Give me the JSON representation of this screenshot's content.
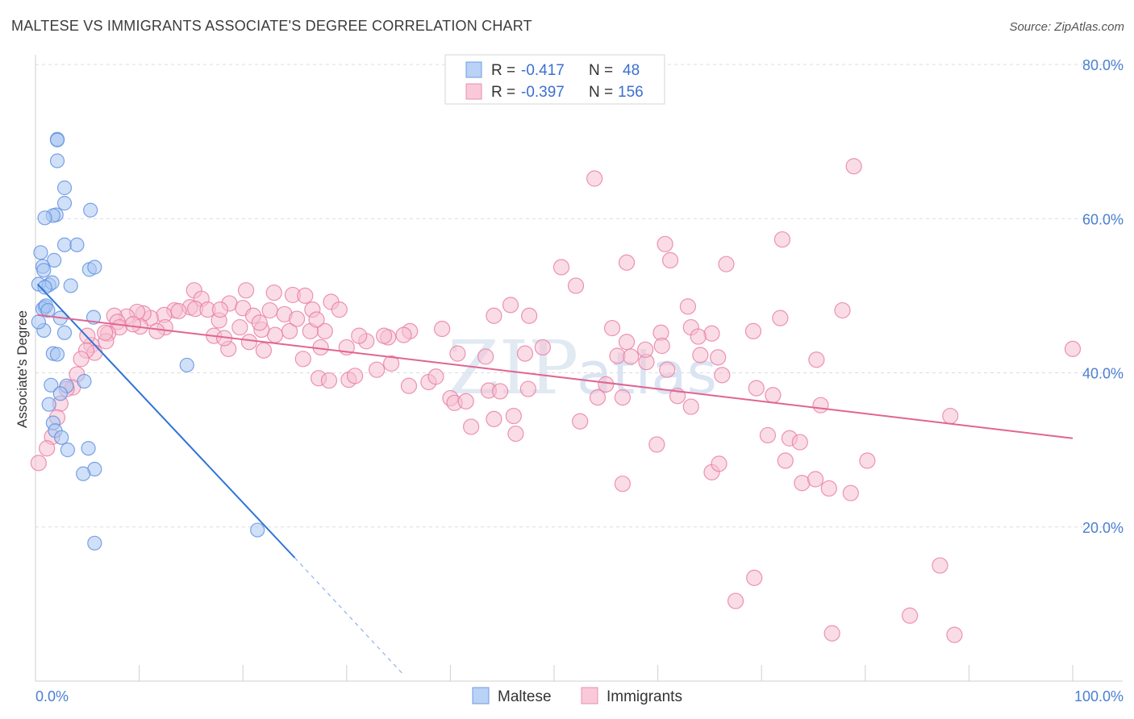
{
  "chart_data": {
    "type": "scatter",
    "title": "MALTESE VS IMMIGRANTS ASSOCIATE'S DEGREE CORRELATION CHART",
    "source": "Source: ZipAtlas.com",
    "ylabel": "Associate's Degree",
    "xlim": [
      0,
      100
    ],
    "ylim": [
      0,
      80
    ],
    "x_tick_labels": [
      "0.0%",
      "100.0%"
    ],
    "y_ticks": [
      {
        "value": 20,
        "label": "20.0%"
      },
      {
        "value": 40,
        "label": "40.0%"
      },
      {
        "value": 60,
        "label": "60.0%"
      },
      {
        "value": 80,
        "label": "80.0%"
      }
    ],
    "grid": true,
    "watermark": {
      "part1": "ZIP",
      "part2": "atlas"
    },
    "legend": {
      "placement": "top-center",
      "rows": [
        {
          "r_label": "R =",
          "r_value": "-0.417",
          "n_label": "N =",
          "n_value": "48"
        },
        {
          "r_label": "R =",
          "r_value": "-0.397",
          "n_label": "N =",
          "n_value": "156"
        }
      ]
    },
    "series": [
      {
        "name": "Maltese",
        "color": "#5b8fe0",
        "fill": "#a9c6f2",
        "trend": {
          "x0": 0.2,
          "y0": 51.5,
          "x1": 25.0,
          "y1": 16.0,
          "dash_to_x": 35.5,
          "dash_to_y": 0.8,
          "color": "#2f74d6"
        },
        "points": [
          [
            2.1,
            70.3
          ],
          [
            2.1,
            70.2
          ],
          [
            2.1,
            67.5
          ],
          [
            2.8,
            64.0
          ],
          [
            2.8,
            62.0
          ],
          [
            2.0,
            60.5
          ],
          [
            1.7,
            60.4
          ],
          [
            5.3,
            61.1
          ],
          [
            0.9,
            60.1
          ],
          [
            2.8,
            56.6
          ],
          [
            4.0,
            56.6
          ],
          [
            0.5,
            55.6
          ],
          [
            1.8,
            54.6
          ],
          [
            5.2,
            53.4
          ],
          [
            5.7,
            53.7
          ],
          [
            0.7,
            53.8
          ],
          [
            0.8,
            53.3
          ],
          [
            0.3,
            51.5
          ],
          [
            1.3,
            51.4
          ],
          [
            1.6,
            51.7
          ],
          [
            0.9,
            51.1
          ],
          [
            3.4,
            51.3
          ],
          [
            0.9,
            48.5
          ],
          [
            0.7,
            48.3
          ],
          [
            1.0,
            48.7
          ],
          [
            1.2,
            48.1
          ],
          [
            2.4,
            47.1
          ],
          [
            5.6,
            47.2
          ],
          [
            0.8,
            45.5
          ],
          [
            2.8,
            45.2
          ],
          [
            1.7,
            42.5
          ],
          [
            2.1,
            42.4
          ],
          [
            14.6,
            41.0
          ],
          [
            4.7,
            38.9
          ],
          [
            1.5,
            38.4
          ],
          [
            3.0,
            38.3
          ],
          [
            2.4,
            37.3
          ],
          [
            1.3,
            35.9
          ],
          [
            1.7,
            33.5
          ],
          [
            1.9,
            32.5
          ],
          [
            2.5,
            31.6
          ],
          [
            5.1,
            30.2
          ],
          [
            3.1,
            30.0
          ],
          [
            5.7,
            27.5
          ],
          [
            4.6,
            26.9
          ],
          [
            21.4,
            19.6
          ],
          [
            5.7,
            17.9
          ],
          [
            0.3,
            46.6
          ]
        ]
      },
      {
        "name": "Immigrants",
        "color": "#e87aa0",
        "fill": "#f6bfd2",
        "trend": {
          "x0": 0.2,
          "y0": 47.5,
          "x1": 100.0,
          "y1": 31.5,
          "color": "#e06592"
        },
        "points": [
          [
            53.9,
            65.2
          ],
          [
            78.9,
            66.8
          ],
          [
            72.0,
            57.3
          ],
          [
            60.7,
            56.7
          ],
          [
            66.6,
            54.1
          ],
          [
            57.0,
            54.3
          ],
          [
            61.2,
            54.6
          ],
          [
            71.8,
            47.1
          ],
          [
            62.9,
            48.6
          ],
          [
            52.1,
            51.3
          ],
          [
            50.7,
            53.7
          ],
          [
            45.8,
            48.8
          ],
          [
            44.2,
            47.4
          ],
          [
            47.6,
            47.4
          ],
          [
            63.2,
            45.9
          ],
          [
            55.6,
            45.8
          ],
          [
            65.2,
            45.1
          ],
          [
            60.3,
            45.2
          ],
          [
            56.1,
            42.2
          ],
          [
            57.4,
            42.1
          ],
          [
            64.1,
            42.3
          ],
          [
            57.0,
            44.0
          ],
          [
            60.4,
            43.5
          ],
          [
            48.9,
            43.3
          ],
          [
            47.2,
            42.5
          ],
          [
            43.4,
            42.1
          ],
          [
            40.7,
            42.5
          ],
          [
            39.2,
            45.7
          ],
          [
            36.1,
            45.4
          ],
          [
            35.5,
            44.9
          ],
          [
            34.0,
            44.6
          ],
          [
            33.6,
            44.8
          ],
          [
            31.9,
            44.1
          ],
          [
            31.2,
            44.8
          ],
          [
            30.0,
            43.3
          ],
          [
            27.5,
            43.3
          ],
          [
            27.9,
            45.4
          ],
          [
            26.5,
            45.4
          ],
          [
            24.5,
            45.4
          ],
          [
            23.1,
            44.9
          ],
          [
            21.8,
            45.6
          ],
          [
            20.6,
            44.0
          ],
          [
            18.6,
            43.1
          ],
          [
            17.2,
            44.8
          ],
          [
            17.7,
            46.8
          ],
          [
            18.7,
            49.0
          ],
          [
            20.0,
            48.4
          ],
          [
            21.0,
            47.4
          ],
          [
            21.6,
            46.5
          ],
          [
            22.6,
            48.1
          ],
          [
            24.0,
            47.6
          ],
          [
            25.2,
            47.0
          ],
          [
            26.7,
            48.2
          ],
          [
            27.1,
            46.9
          ],
          [
            28.5,
            49.2
          ],
          [
            29.3,
            48.2
          ],
          [
            23.0,
            50.4
          ],
          [
            24.8,
            50.1
          ],
          [
            26.0,
            50.0
          ],
          [
            20.3,
            50.7
          ],
          [
            15.3,
            50.7
          ],
          [
            16.0,
            49.6
          ],
          [
            13.4,
            48.1
          ],
          [
            14.9,
            48.5
          ],
          [
            15.4,
            48.3
          ],
          [
            12.4,
            47.5
          ],
          [
            11.1,
            47.1
          ],
          [
            10.4,
            47.7
          ],
          [
            9.8,
            47.9
          ],
          [
            8.8,
            47.3
          ],
          [
            7.6,
            47.4
          ],
          [
            7.9,
            46.6
          ],
          [
            8.1,
            45.9
          ],
          [
            7.0,
            45.1
          ],
          [
            6.8,
            44.1
          ],
          [
            5.4,
            43.6
          ],
          [
            5.7,
            42.6
          ],
          [
            4.9,
            42.9
          ],
          [
            4.4,
            41.8
          ],
          [
            4.0,
            39.8
          ],
          [
            3.6,
            38.1
          ],
          [
            3.0,
            37.9
          ],
          [
            2.4,
            36.0
          ],
          [
            2.1,
            34.2
          ],
          [
            1.6,
            31.7
          ],
          [
            1.1,
            30.2
          ],
          [
            0.3,
            28.3
          ],
          [
            5.0,
            44.8
          ],
          [
            6.7,
            45.2
          ],
          [
            10.1,
            46.0
          ],
          [
            12.5,
            45.9
          ],
          [
            9.4,
            46.3
          ],
          [
            11.7,
            45.4
          ],
          [
            13.8,
            48.0
          ],
          [
            16.6,
            48.2
          ],
          [
            17.8,
            48.2
          ],
          [
            18.2,
            44.5
          ],
          [
            19.7,
            45.9
          ],
          [
            22.0,
            42.9
          ],
          [
            25.8,
            41.8
          ],
          [
            27.3,
            39.3
          ],
          [
            28.3,
            39.0
          ],
          [
            30.2,
            39.1
          ],
          [
            30.8,
            39.6
          ],
          [
            32.9,
            40.4
          ],
          [
            34.3,
            41.2
          ],
          [
            37.9,
            38.8
          ],
          [
            38.6,
            39.5
          ],
          [
            36.0,
            38.3
          ],
          [
            40.0,
            36.7
          ],
          [
            40.4,
            36.1
          ],
          [
            41.5,
            36.3
          ],
          [
            43.7,
            37.7
          ],
          [
            44.8,
            37.6
          ],
          [
            47.5,
            37.9
          ],
          [
            42.0,
            33.0
          ],
          [
            44.2,
            34.0
          ],
          [
            46.1,
            34.4
          ],
          [
            46.3,
            32.1
          ],
          [
            52.5,
            33.7
          ],
          [
            54.2,
            36.8
          ],
          [
            55.0,
            38.5
          ],
          [
            56.6,
            36.8
          ],
          [
            58.9,
            41.4
          ],
          [
            58.8,
            43.0
          ],
          [
            60.9,
            40.4
          ],
          [
            61.9,
            37.0
          ],
          [
            63.2,
            35.6
          ],
          [
            65.8,
            42.0
          ],
          [
            66.2,
            39.7
          ],
          [
            69.5,
            38.0
          ],
          [
            71.1,
            37.1
          ],
          [
            75.3,
            41.7
          ],
          [
            75.7,
            35.8
          ],
          [
            70.6,
            31.9
          ],
          [
            72.7,
            31.5
          ],
          [
            73.7,
            31.0
          ],
          [
            72.3,
            28.6
          ],
          [
            73.9,
            25.7
          ],
          [
            76.5,
            25.0
          ],
          [
            80.2,
            28.6
          ],
          [
            78.6,
            24.4
          ],
          [
            75.2,
            26.2
          ],
          [
            88.2,
            34.4
          ],
          [
            100.0,
            43.1
          ],
          [
            69.2,
            45.4
          ],
          [
            63.9,
            44.7
          ],
          [
            56.6,
            25.6
          ],
          [
            59.9,
            30.7
          ],
          [
            65.2,
            27.1
          ],
          [
            65.9,
            28.2
          ],
          [
            87.2,
            15.0
          ],
          [
            84.3,
            8.5
          ],
          [
            88.6,
            6.0
          ],
          [
            76.8,
            6.2
          ],
          [
            69.3,
            13.4
          ],
          [
            67.5,
            10.4
          ],
          [
            77.8,
            48.1
          ]
        ]
      }
    ]
  }
}
